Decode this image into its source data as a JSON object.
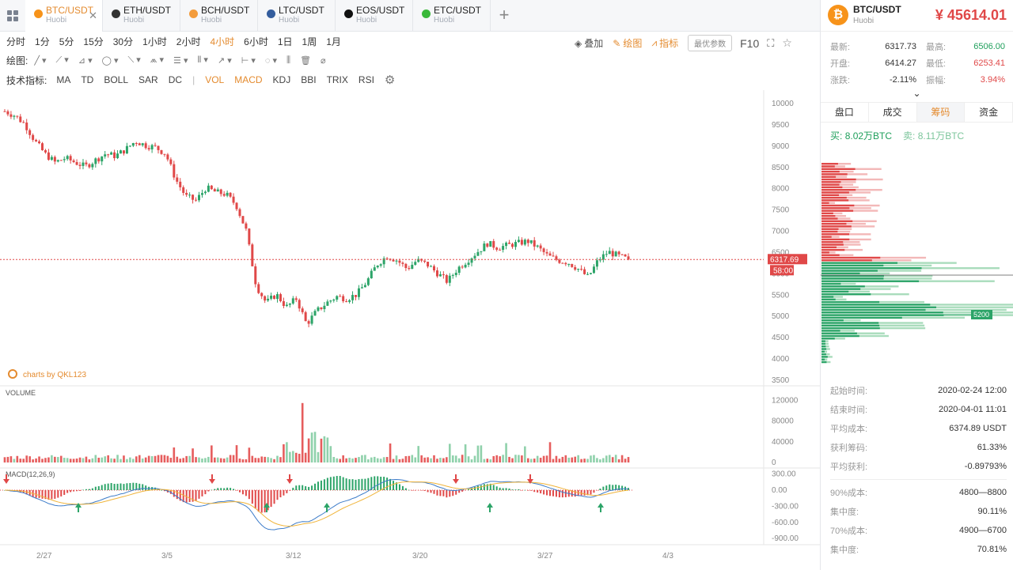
{
  "tabs": [
    {
      "pair": "BTC/USDT",
      "exchange": "Huobi",
      "color": "#f7931a",
      "active": true,
      "close": "✕"
    },
    {
      "pair": "ETH/USDT",
      "exchange": "Huobi",
      "color": "#333333"
    },
    {
      "pair": "BCH/USDT",
      "exchange": "Huobi",
      "color": "#f39c3c"
    },
    {
      "pair": "LTC/USDT",
      "exchange": "Huobi",
      "color": "#345d9d"
    },
    {
      "pair": "EOS/USDT",
      "exchange": "Huobi",
      "color": "#111111"
    },
    {
      "pair": "ETC/USDT",
      "exchange": "Huobi",
      "color": "#3ab83a"
    }
  ],
  "add_tab": "+",
  "timeframes": [
    "分时",
    "1分",
    "5分",
    "15分",
    "30分",
    "1小时",
    "2小时",
    "4小时",
    "6小时",
    "1日",
    "1周",
    "1月"
  ],
  "active_timeframe": "4小时",
  "toolbar": {
    "overlay": "叠加",
    "draw": "绘图",
    "indicator": "指标",
    "best": "最优参数",
    "f10": "F10"
  },
  "draw_label": "绘图:",
  "ind_label": "技术指标:",
  "indicators": [
    "MA",
    "TD",
    "BOLL",
    "SAR",
    "DC",
    "VOL",
    "MACD",
    "KDJ",
    "BBI",
    "TRIX",
    "RSI"
  ],
  "active_indicators": [
    "VOL",
    "MACD"
  ],
  "chart": {
    "y_ticks": [
      "10000",
      "9500",
      "9000",
      "8500",
      "8000",
      "7500",
      "7000",
      "6500",
      "6000",
      "5500",
      "5000",
      "4500",
      "4000",
      "3500"
    ],
    "price_tag": "6317.69",
    "countdown": "58:00",
    "vol_label": "VOLUME",
    "vol_ticks": [
      "120000",
      "80000",
      "40000",
      "0"
    ],
    "macd_label": "MACD(12,26,9)",
    "macd_ticks": [
      "300.00",
      "0.00",
      "-300.00",
      "-600.00",
      "-900.00"
    ],
    "x_ticks": [
      "2/27",
      "3/5",
      "3/12",
      "3/20",
      "3/27",
      "4/3"
    ],
    "watermark": "charts by QKL123",
    "book_level": "5200"
  },
  "chart_data": {
    "type": "candlestick",
    "ylim": [
      3500,
      10000
    ],
    "close_series": [
      9800,
      9700,
      9500,
      9100,
      8800,
      8600,
      8700,
      8600,
      8500,
      8650,
      8800,
      8750,
      8900,
      9100,
      9000,
      8950,
      8800,
      8200,
      7800,
      7700,
      8000,
      7900,
      7850,
      7600,
      7000,
      5700,
      5300,
      5500,
      5200,
      5400,
      4800,
      5100,
      5300,
      5450,
      5400,
      5500,
      5800,
      6200,
      6400,
      6300,
      6100,
      6300,
      6200,
      6000,
      5800,
      6100,
      6300,
      6500,
      6700,
      6600,
      6650,
      6700,
      6750,
      6600,
      6400,
      6300,
      6250,
      6100,
      5900,
      6300,
      6500,
      6400,
      6317
    ],
    "last": 6317.69
  },
  "side": {
    "pair": "BTC/USDT",
    "exchange": "Huobi",
    "price": "¥ 45614.01",
    "stats": [
      {
        "k": "最新:",
        "v": "6317.73",
        "k2": "最高:",
        "v2": "6506.00",
        "c2": "green"
      },
      {
        "k": "开盘:",
        "v": "6414.27",
        "k2": "最低:",
        "v2": "6253.41",
        "c2": "red"
      },
      {
        "k": "涨跌:",
        "v": "-2.11%",
        "c": "red",
        "k2": "振幅:",
        "v2": "3.94%",
        "c2": "red"
      }
    ],
    "tabs": [
      "盘口",
      "成交",
      "筹码",
      "资金"
    ],
    "active_tab": "筹码",
    "buy_label": "买:",
    "buy": "8.02万BTC",
    "sell_label": "卖:",
    "sell": "8.11万BTC",
    "info": [
      {
        "k": "起始时间:",
        "v": "2020-02-24 12:00"
      },
      {
        "k": "结束时间:",
        "v": "2020-04-01 11:01"
      },
      {
        "k": "平均成本:",
        "v": "6374.89 USDT",
        "c": "red"
      },
      {
        "k": "获利筹码:",
        "v": "61.33%"
      },
      {
        "k": "平均获利:",
        "v": "-0.89793%",
        "c": "red"
      }
    ],
    "info2": [
      {
        "k": "90%成本:",
        "v": "4800—8800"
      },
      {
        "k": "集中度:",
        "v": "90.11%"
      },
      {
        "k": "70%成本:",
        "v": "4900—6700"
      },
      {
        "k": "集中度:",
        "v": "70.81%"
      }
    ]
  }
}
